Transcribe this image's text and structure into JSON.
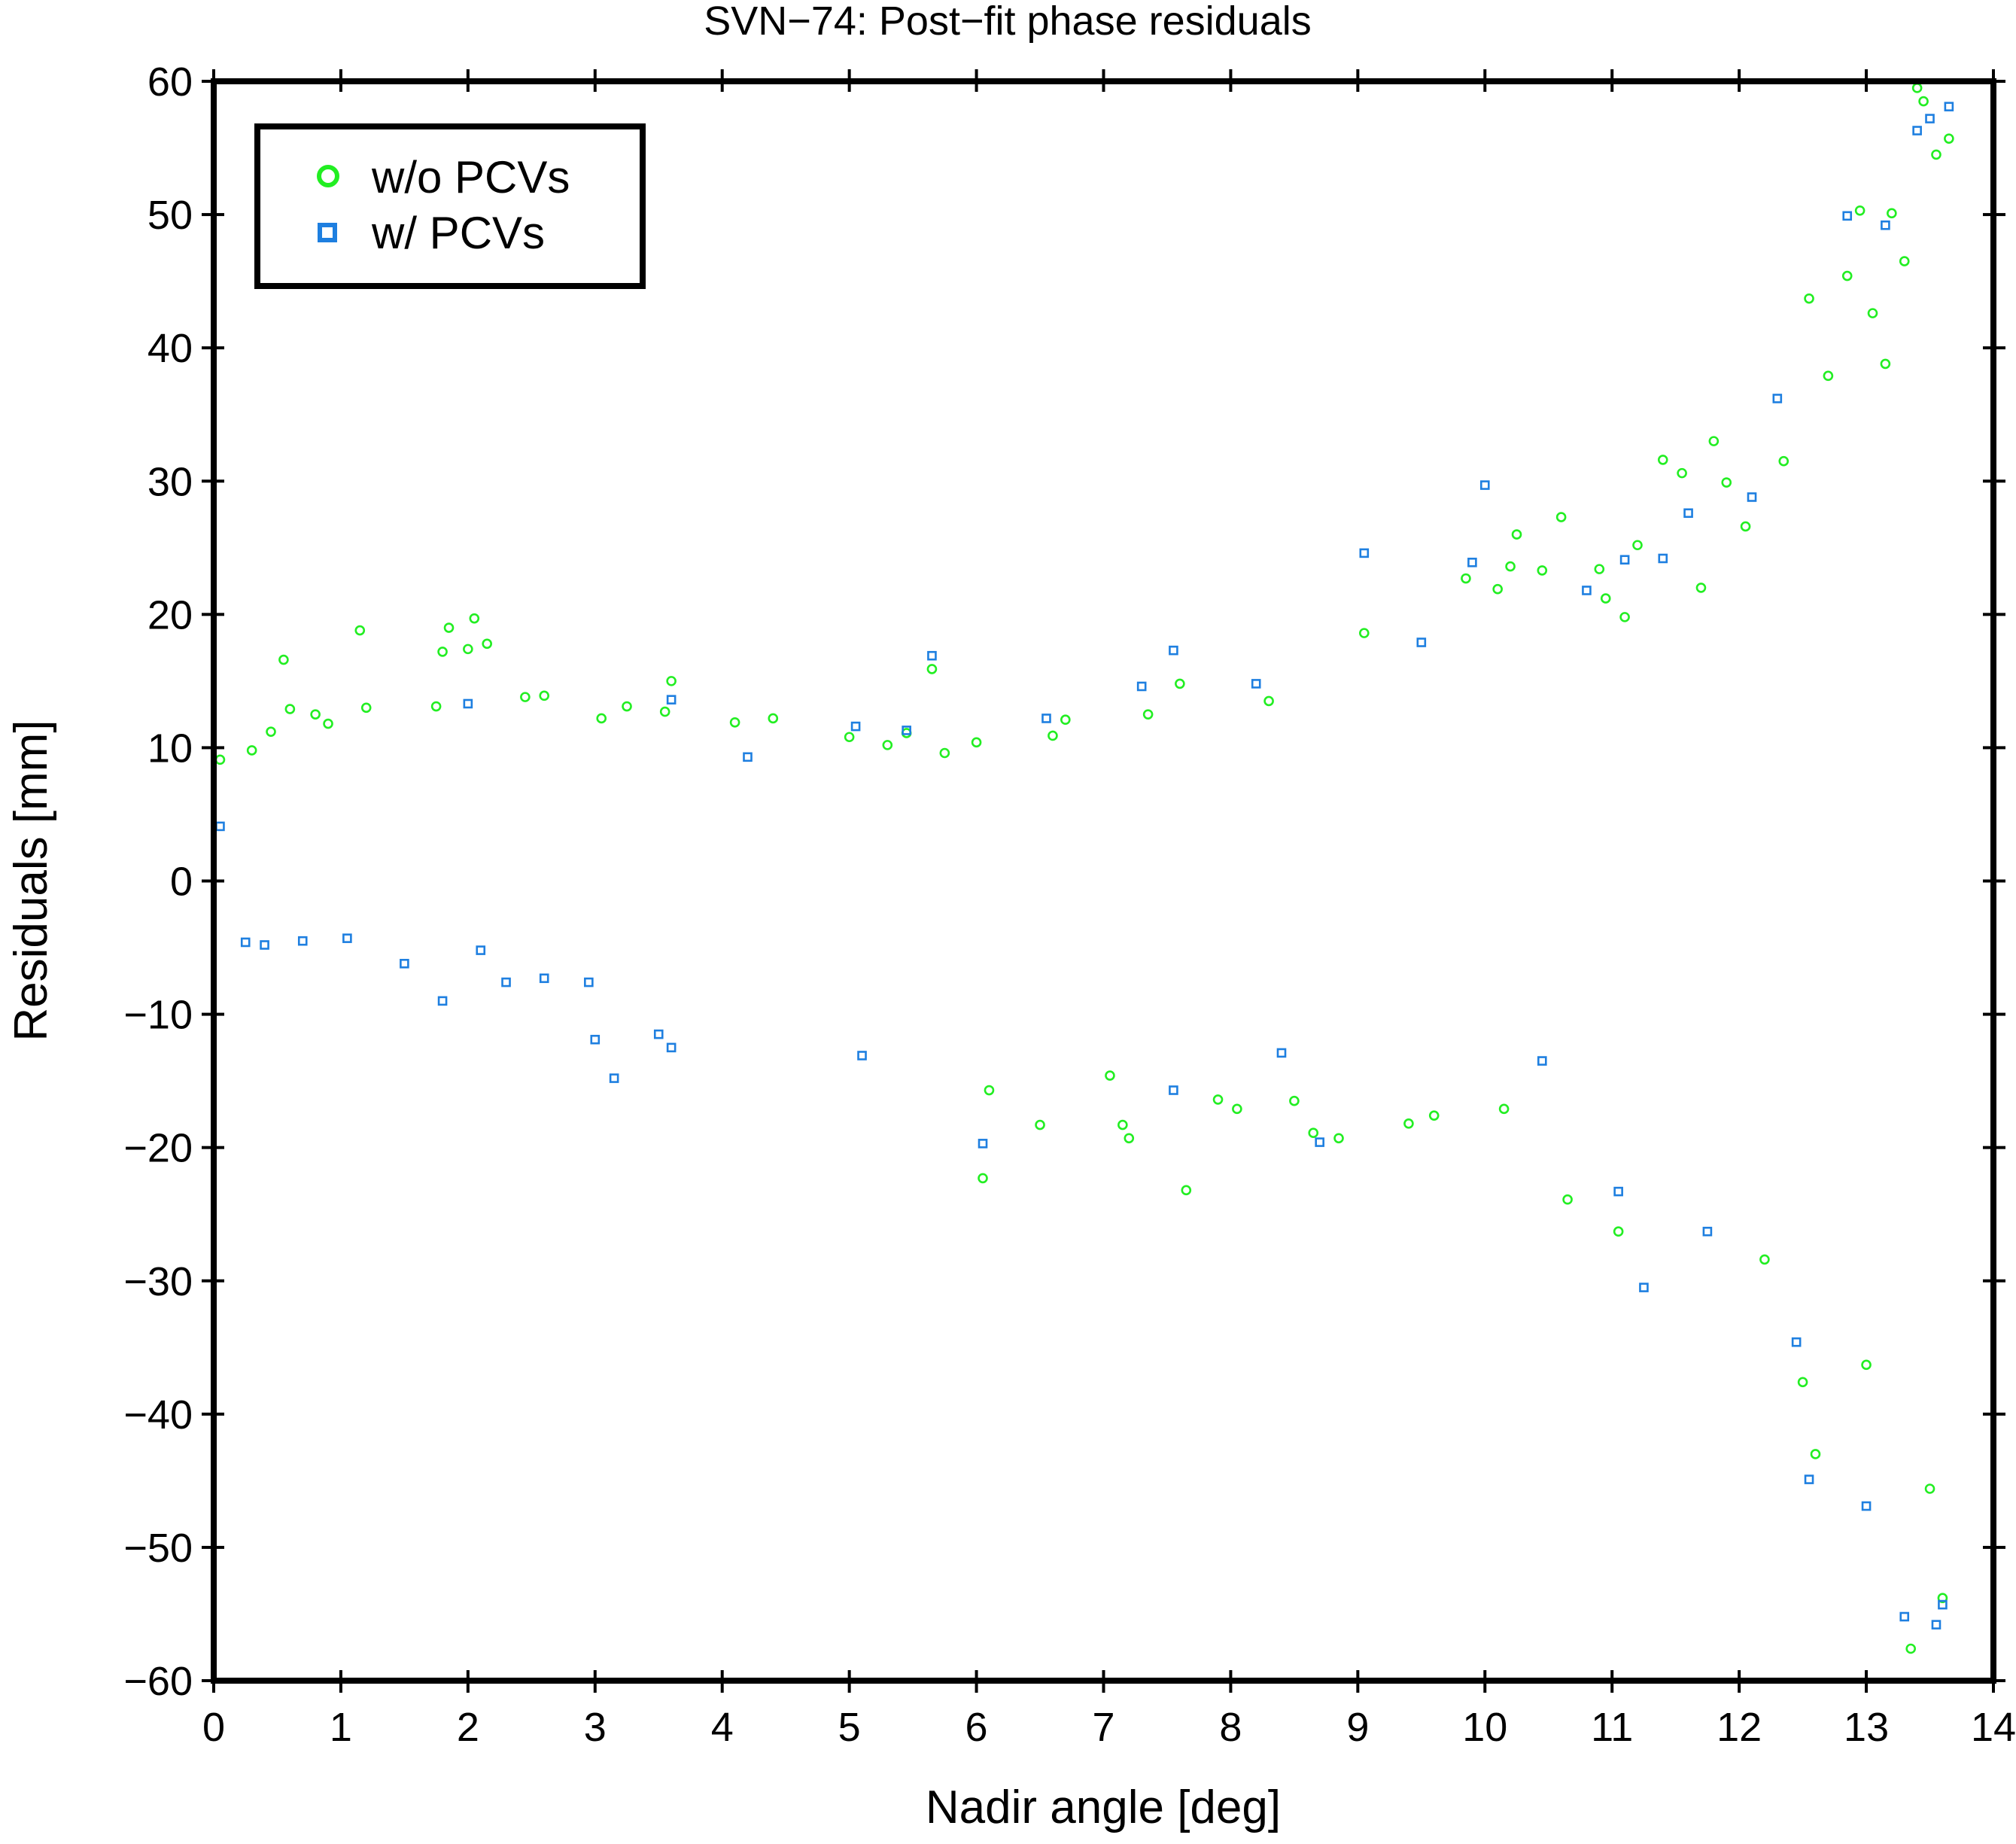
{
  "chart_data": {
    "type": "scatter",
    "title": "SVN−74: Post−fit phase residuals",
    "xlabel": "Nadir angle [deg]",
    "ylabel": "Residuals [mm]",
    "xlim": [
      0,
      14
    ],
    "ylim": [
      -60,
      60
    ],
    "x_ticks": [
      0,
      1,
      2,
      3,
      4,
      5,
      6,
      7,
      8,
      9,
      10,
      11,
      12,
      13,
      14
    ],
    "y_ticks": [
      -60,
      -50,
      -40,
      -30,
      -20,
      -10,
      0,
      10,
      20,
      30,
      40,
      50,
      60
    ],
    "x_tick_labels": [
      "0",
      "1",
      "2",
      "3",
      "4",
      "5",
      "6",
      "7",
      "8",
      "9",
      "10",
      "11",
      "12",
      "13",
      "14"
    ],
    "y_tick_labels": [
      "−60",
      "−50",
      "−40",
      "−30",
      "−20",
      "−10",
      "0",
      "10",
      "20",
      "30",
      "40",
      "50",
      "60"
    ],
    "grid": false,
    "legend_position": "top-left",
    "colors": {
      "wo_pcvs": "#22ee22",
      "w_pcvs": "#1e7fe0",
      "frame": "#000000"
    },
    "series": [
      {
        "name": "w/o PCVs",
        "marker": "circle",
        "color": "#22ee22",
        "points": [
          [
            0.05,
            9.1
          ],
          [
            0.3,
            9.8
          ],
          [
            0.45,
            11.2
          ],
          [
            0.55,
            16.6
          ],
          [
            0.6,
            12.9
          ],
          [
            0.8,
            12.5
          ],
          [
            0.9,
            11.8
          ],
          [
            1.15,
            18.8
          ],
          [
            1.2,
            13.0
          ],
          [
            1.75,
            13.1
          ],
          [
            1.8,
            17.2
          ],
          [
            1.85,
            19.0
          ],
          [
            2.0,
            17.4
          ],
          [
            2.05,
            19.7
          ],
          [
            2.15,
            17.8
          ],
          [
            2.45,
            13.8
          ],
          [
            2.6,
            13.9
          ],
          [
            3.05,
            12.2
          ],
          [
            3.25,
            13.1
          ],
          [
            3.55,
            12.7
          ],
          [
            3.6,
            15.0
          ],
          [
            4.1,
            11.9
          ],
          [
            4.4,
            12.2
          ],
          [
            5.0,
            10.8
          ],
          [
            5.3,
            10.2
          ],
          [
            5.45,
            11.1
          ],
          [
            5.65,
            15.9
          ],
          [
            5.75,
            9.6
          ],
          [
            6.0,
            10.4
          ],
          [
            6.05,
            -22.3
          ],
          [
            6.1,
            -15.7
          ],
          [
            6.5,
            -18.3
          ],
          [
            6.6,
            10.9
          ],
          [
            6.7,
            12.1
          ],
          [
            7.05,
            -14.6
          ],
          [
            7.15,
            -18.3
          ],
          [
            7.2,
            -19.3
          ],
          [
            7.35,
            12.5
          ],
          [
            7.6,
            14.8
          ],
          [
            7.65,
            -23.2
          ],
          [
            7.9,
            -16.4
          ],
          [
            8.05,
            -17.1
          ],
          [
            8.3,
            13.5
          ],
          [
            8.5,
            -16.5
          ],
          [
            8.65,
            -18.9
          ],
          [
            8.85,
            -19.3
          ],
          [
            9.05,
            18.6
          ],
          [
            9.4,
            -18.2
          ],
          [
            9.6,
            -17.6
          ],
          [
            9.85,
            22.7
          ],
          [
            10.1,
            21.9
          ],
          [
            10.15,
            -17.1
          ],
          [
            10.2,
            23.6
          ],
          [
            10.25,
            26.0
          ],
          [
            10.45,
            23.3
          ],
          [
            10.6,
            27.3
          ],
          [
            10.65,
            -23.9
          ],
          [
            10.9,
            23.4
          ],
          [
            10.95,
            21.2
          ],
          [
            11.05,
            -26.3
          ],
          [
            11.1,
            19.8
          ],
          [
            11.2,
            25.2
          ],
          [
            11.4,
            31.6
          ],
          [
            11.55,
            30.6
          ],
          [
            11.7,
            22.0
          ],
          [
            11.8,
            33.0
          ],
          [
            11.9,
            29.9
          ],
          [
            12.05,
            26.6
          ],
          [
            12.2,
            -28.4
          ],
          [
            12.35,
            31.5
          ],
          [
            12.5,
            -37.6
          ],
          [
            12.55,
            43.7
          ],
          [
            12.6,
            -43.0
          ],
          [
            12.7,
            37.9
          ],
          [
            12.85,
            45.4
          ],
          [
            12.95,
            50.3
          ],
          [
            13.0,
            -36.3
          ],
          [
            13.05,
            42.6
          ],
          [
            13.15,
            38.8
          ],
          [
            13.2,
            50.1
          ],
          [
            13.3,
            46.5
          ],
          [
            13.35,
            -57.6
          ],
          [
            13.4,
            59.5
          ],
          [
            13.45,
            58.5
          ],
          [
            13.5,
            -45.6
          ],
          [
            13.55,
            54.5
          ],
          [
            13.6,
            -53.8
          ],
          [
            13.65,
            55.7
          ]
        ]
      },
      {
        "name": "w/ PCVs",
        "marker": "square",
        "color": "#1e7fe0",
        "points": [
          [
            0.05,
            4.1
          ],
          [
            0.25,
            -4.6
          ],
          [
            0.4,
            -4.8
          ],
          [
            0.7,
            -4.5
          ],
          [
            1.05,
            -4.3
          ],
          [
            1.5,
            -6.2
          ],
          [
            1.8,
            -9.0
          ],
          [
            2.0,
            13.3
          ],
          [
            2.1,
            -5.2
          ],
          [
            2.3,
            -7.6
          ],
          [
            2.6,
            -7.3
          ],
          [
            2.95,
            -7.6
          ],
          [
            3.0,
            -11.9
          ],
          [
            3.15,
            -14.8
          ],
          [
            3.5,
            -11.5
          ],
          [
            3.6,
            13.6
          ],
          [
            3.6,
            -12.5
          ],
          [
            4.2,
            9.3
          ],
          [
            5.05,
            11.6
          ],
          [
            5.1,
            -13.1
          ],
          [
            5.45,
            11.3
          ],
          [
            5.65,
            16.9
          ],
          [
            6.05,
            -19.7
          ],
          [
            6.55,
            12.2
          ],
          [
            7.3,
            14.6
          ],
          [
            7.55,
            17.3
          ],
          [
            7.55,
            -15.7
          ],
          [
            8.2,
            14.8
          ],
          [
            8.4,
            -12.9
          ],
          [
            8.7,
            -19.6
          ],
          [
            9.05,
            24.6
          ],
          [
            9.5,
            17.9
          ],
          [
            9.9,
            23.9
          ],
          [
            10.0,
            29.7
          ],
          [
            10.45,
            -13.5
          ],
          [
            10.8,
            21.8
          ],
          [
            11.1,
            24.1
          ],
          [
            11.05,
            -23.3
          ],
          [
            11.25,
            -30.5
          ],
          [
            11.4,
            24.2
          ],
          [
            11.6,
            27.6
          ],
          [
            11.75,
            -26.3
          ],
          [
            12.1,
            28.8
          ],
          [
            12.3,
            36.2
          ],
          [
            12.45,
            -34.6
          ],
          [
            12.55,
            -44.9
          ],
          [
            12.85,
            49.9
          ],
          [
            13.0,
            -46.9
          ],
          [
            13.15,
            49.2
          ],
          [
            13.3,
            -55.2
          ],
          [
            13.4,
            56.3
          ],
          [
            13.5,
            57.2
          ],
          [
            13.55,
            -55.8
          ],
          [
            13.6,
            -54.3
          ],
          [
            13.65,
            58.1
          ]
        ]
      }
    ]
  }
}
